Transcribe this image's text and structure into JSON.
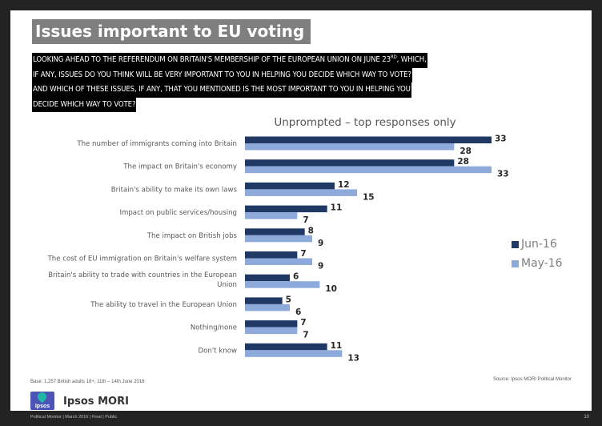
{
  "slide": {
    "title": "Issues important to EU voting",
    "question_lines": [
      "LOOKING AHEAD TO THE REFERENDUM ON BRITAIN'S MEMBERSHIP OF THE EUROPEAN UNION ON JUNE 23",
      "IF ANY, ISSUES DO YOU THINK WILL BE VERY IMPORTANT TO YOU IN HELPING YOU DECIDE WHICH WAY TO VOTE?",
      "AND WHICH OF THESE ISSUES, IF ANY, THAT YOU MENTIONED IS THE MOST IMPORTANT TO YOU IN HELPING YOU",
      "DECIDE WHICH WAY TO VOTE?"
    ],
    "question_sup": "RD",
    "question_line1_tail": ", WHICH,",
    "base_note": "Base: 1,257 British adults 18+, 11th – 14th June 2016",
    "source_note": "Source: Ipsos MORI Political Monitor",
    "logo_text": "Ipsos",
    "brand_name": "Ipsos MORI",
    "footer_left": "Political Monitor | March 2016 | Final | Public",
    "page_number": "10"
  },
  "colors": {
    "jun": "#1f3864",
    "may": "#8eaadb",
    "title_bg": "#7f7f7f"
  },
  "chart_data": {
    "type": "bar",
    "orientation": "horizontal",
    "title": "Unprompted – top responses only",
    "xlabel": "",
    "ylabel": "",
    "xlim": [
      0,
      33
    ],
    "grid": false,
    "legend_position": "right",
    "categories": [
      "The number of immigrants coming into Britain",
      "The impact on Britain's economy",
      "Britain's ability to make its own laws",
      "Impact on public services/housing",
      "The impact on British jobs",
      "The cost of EU immigration on Britain's welfare system",
      "Britain's ability to trade with countries in the European Union",
      "The ability to travel in the European Union",
      "Nothing/none",
      "Don't know"
    ],
    "category_label_lines": [
      [
        "The number of immigrants coming into Britain"
      ],
      [
        "The impact on Britain's economy"
      ],
      [
        "Britain's ability to make its own laws"
      ],
      [
        "Impact on public services/housing"
      ],
      [
        "The impact on British jobs"
      ],
      [
        "The cost of EU immigration on Britain's welfare system"
      ],
      [
        "Britain's ability to trade with countries in the European",
        "Union"
      ],
      [
        "The ability to travel in the European Union"
      ],
      [
        "Nothing/none"
      ],
      [
        "Don't know"
      ]
    ],
    "series": [
      {
        "name": "Jun-16",
        "values": [
          33,
          28,
          12,
          11,
          8,
          7,
          6,
          5,
          7,
          11
        ]
      },
      {
        "name": "May-16",
        "values": [
          28,
          33,
          15,
          7,
          9,
          9,
          10,
          6,
          7,
          13
        ]
      }
    ]
  }
}
